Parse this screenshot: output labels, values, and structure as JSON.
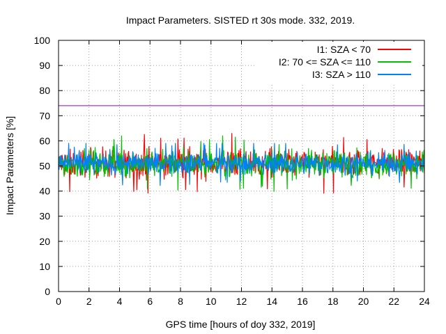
{
  "chart_data": {
    "type": "line",
    "title": "Impact Parameters. SISTED rt 30s mode. 332, 2019.",
    "xlabel": "GPS time [hours of doy 332, 2019]",
    "ylabel": "Impact Parameters [%]",
    "xlim": [
      0,
      24
    ],
    "ylim": [
      0,
      100
    ],
    "xticks": [
      0,
      2,
      4,
      6,
      8,
      10,
      12,
      14,
      16,
      18,
      20,
      22,
      24
    ],
    "yticks": [
      0,
      10,
      20,
      30,
      40,
      50,
      60,
      70,
      80,
      90,
      100
    ],
    "grid": true,
    "legend_position": "top-right",
    "reference_line": {
      "y": 74,
      "color": "#9400d3"
    },
    "series": [
      {
        "name": "I1: SZA < 70",
        "color": "#ff0000",
        "center": 51,
        "typical_range": [
          43,
          61
        ],
        "extremes": [
          37.5,
          64
        ]
      },
      {
        "name": "I2: 70 <= SZA <= 110",
        "color": "#00c000",
        "center": 51,
        "typical_range": [
          43,
          60
        ],
        "extremes": [
          39,
          62
        ]
      },
      {
        "name": "I3: SZA > 110",
        "color": "#0080ff",
        "center": 51,
        "typical_range": [
          44,
          58
        ],
        "extremes": [
          40,
          59
        ]
      }
    ]
  }
}
